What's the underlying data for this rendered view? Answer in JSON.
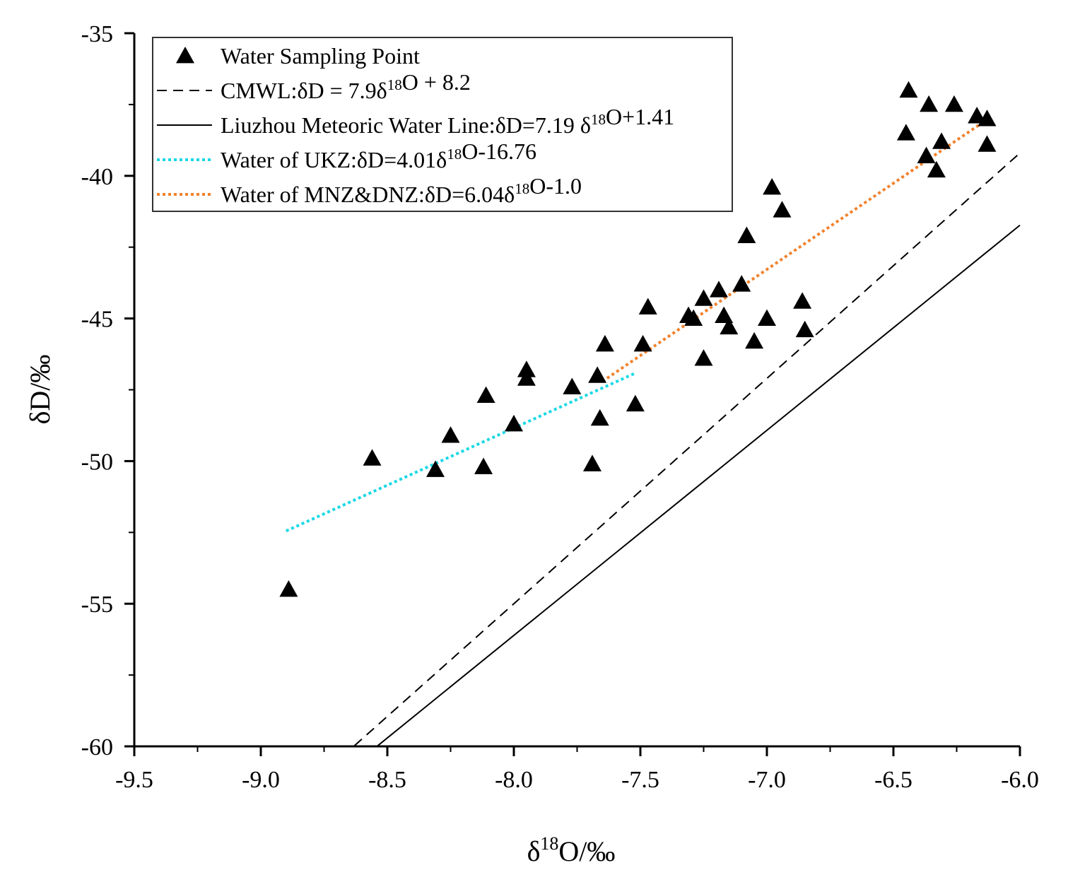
{
  "chart_data": {
    "type": "scatter",
    "xlabel": {
      "base": "δ",
      "sup": "18",
      "rest": "O/‰"
    },
    "ylabel": "δD/‰",
    "xlim": [
      -9.5,
      -6.0
    ],
    "ylim": [
      -60,
      -35
    ],
    "xticks": [
      -9.5,
      -9.0,
      -8.5,
      -8.0,
      -7.5,
      -7.0,
      -6.5,
      -6.0
    ],
    "xtick_labels": [
      "-9.5",
      "-9.0",
      "-8.5",
      "-8.0",
      "-7.5",
      "-7.0",
      "-6.5",
      "-6.0"
    ],
    "yticks": [
      -60,
      -55,
      -50,
      -45,
      -40,
      -35
    ],
    "ytick_labels": [
      "-60",
      "-55",
      "-50",
      "-45",
      "-40",
      "-35"
    ],
    "legend": {
      "position": "top-left",
      "entries": [
        {
          "id": "points",
          "marker": "triangle",
          "parts": [
            {
              "t": "Water Sampling Point"
            }
          ]
        },
        {
          "id": "cmwl",
          "line": "dashed",
          "color": "#000000",
          "parts": [
            {
              "t": "CMWL:δD = 7.9δ"
            },
            {
              "t": "18",
              "sup": true
            },
            {
              "t": "O + 8.2"
            }
          ]
        },
        {
          "id": "lmwl",
          "line": "solid",
          "color": "#000000",
          "parts": [
            {
              "t": "Liuzhou Meteoric Water Line:δD=7.19 δ"
            },
            {
              "t": "18",
              "sup": true
            },
            {
              "t": "O+1.41"
            }
          ]
        },
        {
          "id": "ukz",
          "line": "dotted",
          "color": "#19d8e6",
          "parts": [
            {
              "t": "Water of UKZ:δD=4.01δ"
            },
            {
              "t": "18",
              "sup": true
            },
            {
              "t": "O-16.76"
            }
          ]
        },
        {
          "id": "mnz",
          "line": "dotted",
          "color": "#f0822d",
          "parts": [
            {
              "t": "Water of MNZ&DNZ:δD=6.04δ"
            },
            {
              "t": "18",
              "sup": true
            },
            {
              "t": "O-1.0"
            }
          ]
        }
      ]
    },
    "lines": [
      {
        "name": "CMWL",
        "style": "dashed",
        "color": "#000000",
        "slope": 7.9,
        "intercept": 8.2,
        "x_range": [
          -8.63,
          -6.0
        ]
      },
      {
        "name": "Liuzhou Meteoric Water Line",
        "style": "solid",
        "color": "#000000",
        "slope": 7.19,
        "intercept": 1.41,
        "x_range": [
          -8.54,
          -6.0
        ]
      },
      {
        "name": "Water of UKZ",
        "style": "dotted",
        "color": "#19d8e6",
        "slope": 4.01,
        "intercept": -16.76,
        "x_range": [
          -8.9,
          -7.52
        ]
      },
      {
        "name": "Water of MNZ&DNZ",
        "style": "dotted",
        "color": "#f0822d",
        "slope": 6.04,
        "intercept": -1.0,
        "x_range": [
          -7.65,
          -6.12
        ]
      }
    ],
    "series": [
      {
        "name": "Water Sampling Point",
        "marker": "triangle",
        "color": "#000000",
        "points": [
          [
            -8.89,
            -54.5
          ],
          [
            -8.56,
            -49.9
          ],
          [
            -8.31,
            -50.3
          ],
          [
            -8.25,
            -49.1
          ],
          [
            -8.12,
            -50.2
          ],
          [
            -8.11,
            -47.7
          ],
          [
            -8.0,
            -48.7
          ],
          [
            -7.95,
            -46.8
          ],
          [
            -7.95,
            -47.1
          ],
          [
            -7.77,
            -47.4
          ],
          [
            -7.69,
            -50.1
          ],
          [
            -7.67,
            -47.0
          ],
          [
            -7.66,
            -48.5
          ],
          [
            -7.64,
            -45.9
          ],
          [
            -7.52,
            -48.0
          ],
          [
            -7.49,
            -45.9
          ],
          [
            -7.47,
            -44.6
          ],
          [
            -7.31,
            -44.9
          ],
          [
            -7.29,
            -45.0
          ],
          [
            -7.25,
            -44.3
          ],
          [
            -7.25,
            -46.4
          ],
          [
            -7.19,
            -44.0
          ],
          [
            -7.17,
            -44.9
          ],
          [
            -7.15,
            -45.3
          ],
          [
            -7.1,
            -43.8
          ],
          [
            -7.08,
            -42.1
          ],
          [
            -7.05,
            -45.8
          ],
          [
            -7.0,
            -45.0
          ],
          [
            -6.98,
            -40.4
          ],
          [
            -6.94,
            -41.2
          ],
          [
            -6.86,
            -44.4
          ],
          [
            -6.85,
            -45.4
          ],
          [
            -6.45,
            -38.5
          ],
          [
            -6.44,
            -37.0
          ],
          [
            -6.37,
            -39.3
          ],
          [
            -6.36,
            -37.5
          ],
          [
            -6.33,
            -39.8
          ],
          [
            -6.31,
            -38.8
          ],
          [
            -6.26,
            -37.5
          ],
          [
            -6.17,
            -37.9
          ],
          [
            -6.13,
            -38.0
          ],
          [
            -6.13,
            -38.9
          ]
        ]
      }
    ]
  }
}
